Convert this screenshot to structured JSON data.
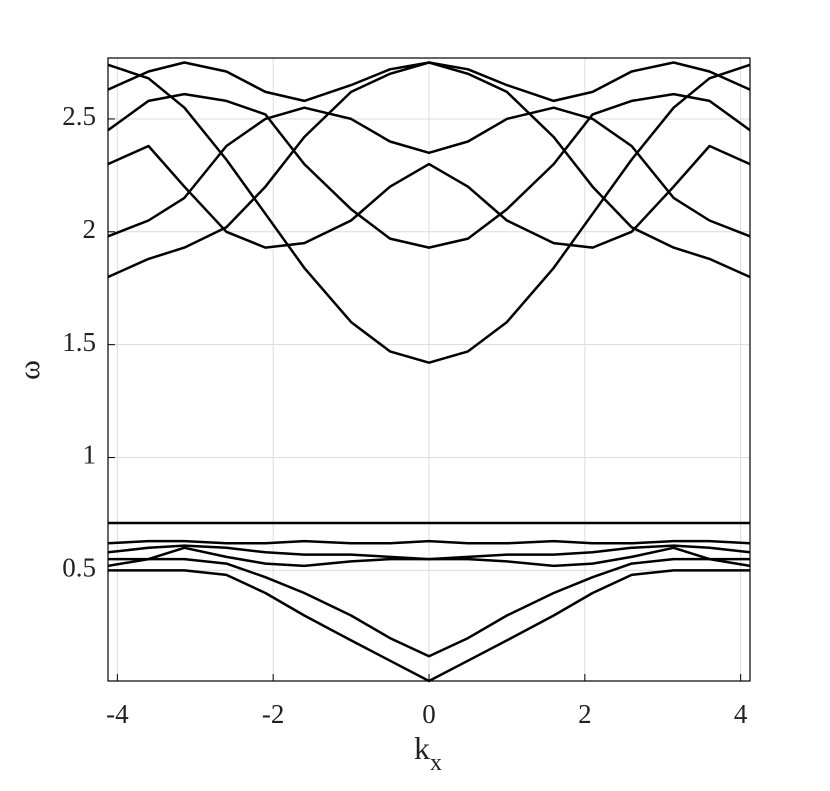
{
  "chart_data": {
    "type": "line",
    "ylabel": "ω",
    "xlabel": "k",
    "xlabel_subscript": "x",
    "xlim": [
      -4.12,
      4.12
    ],
    "ylim": [
      0.01,
      2.77
    ],
    "xticks": [
      -4,
      -2,
      0,
      2,
      4
    ],
    "yticks": [
      0.5,
      1,
      1.5,
      2,
      2.5
    ],
    "grid": true,
    "x": [
      -4.12,
      -3.6,
      -3.14,
      -2.6,
      -2.1,
      -1.6,
      -1.0,
      -0.5,
      0,
      0.5,
      1.0,
      1.6,
      2.1,
      2.6,
      3.14,
      3.6,
      4.12
    ],
    "series": [
      {
        "color": "#000000",
        "values": [
          2.63,
          2.71,
          2.75,
          2.71,
          2.62,
          2.58,
          2.65,
          2.72,
          2.75,
          2.72,
          2.65,
          2.58,
          2.62,
          2.71,
          2.75,
          2.71,
          2.63
        ]
      },
      {
        "color": "#000000",
        "values": [
          2.45,
          2.58,
          2.61,
          2.58,
          2.52,
          2.3,
          2.1,
          1.97,
          1.93,
          1.97,
          2.1,
          2.3,
          2.52,
          2.58,
          2.61,
          2.58,
          2.45
        ]
      },
      {
        "color": "#000000",
        "values": [
          2.74,
          2.68,
          2.55,
          2.32,
          2.08,
          1.84,
          1.6,
          1.47,
          1.42,
          1.47,
          1.6,
          1.84,
          2.08,
          2.32,
          2.55,
          2.68,
          2.74
        ]
      },
      {
        "color": "#000000",
        "values": [
          1.8,
          1.88,
          1.93,
          2.02,
          2.2,
          2.42,
          2.62,
          2.7,
          2.75,
          2.7,
          2.62,
          2.42,
          2.2,
          2.02,
          1.93,
          1.88,
          1.8
        ]
      },
      {
        "color": "#000000",
        "values": [
          2.3,
          2.38,
          2.2,
          2.0,
          1.93,
          1.95,
          2.05,
          2.2,
          2.3,
          2.2,
          2.05,
          1.95,
          1.93,
          2.0,
          2.2,
          2.38,
          2.3
        ]
      },
      {
        "color": "#000000",
        "values": [
          1.98,
          2.05,
          2.15,
          2.38,
          2.5,
          2.55,
          2.5,
          2.4,
          2.35,
          2.4,
          2.5,
          2.55,
          2.5,
          2.38,
          2.15,
          2.05,
          1.98
        ]
      },
      {
        "color": "#000000",
        "values": [
          0.71,
          0.71,
          0.71,
          0.71,
          0.71,
          0.71,
          0.71,
          0.71,
          0.71,
          0.71,
          0.71,
          0.71,
          0.71,
          0.71,
          0.71,
          0.71,
          0.71
        ]
      },
      {
        "color": "#000000",
        "values": [
          0.62,
          0.63,
          0.63,
          0.62,
          0.62,
          0.63,
          0.62,
          0.62,
          0.63,
          0.62,
          0.62,
          0.63,
          0.62,
          0.62,
          0.63,
          0.63,
          0.62
        ]
      },
      {
        "color": "#000000",
        "values": [
          0.58,
          0.6,
          0.61,
          0.6,
          0.58,
          0.57,
          0.57,
          0.56,
          0.55,
          0.56,
          0.57,
          0.57,
          0.58,
          0.6,
          0.61,
          0.6,
          0.58
        ]
      },
      {
        "color": "#000000",
        "values": [
          0.52,
          0.55,
          0.6,
          0.56,
          0.53,
          0.52,
          0.54,
          0.55,
          0.55,
          0.55,
          0.54,
          0.52,
          0.53,
          0.56,
          0.6,
          0.55,
          0.52
        ]
      },
      {
        "color": "#000000",
        "values": [
          0.5,
          0.5,
          0.5,
          0.48,
          0.4,
          0.3,
          0.19,
          0.1,
          0.01,
          0.1,
          0.19,
          0.3,
          0.4,
          0.48,
          0.5,
          0.5,
          0.5
        ]
      },
      {
        "color": "#000000",
        "values": [
          0.55,
          0.55,
          0.55,
          0.53,
          0.47,
          0.4,
          0.3,
          0.2,
          0.12,
          0.2,
          0.3,
          0.4,
          0.47,
          0.53,
          0.55,
          0.55,
          0.55
        ]
      }
    ]
  }
}
